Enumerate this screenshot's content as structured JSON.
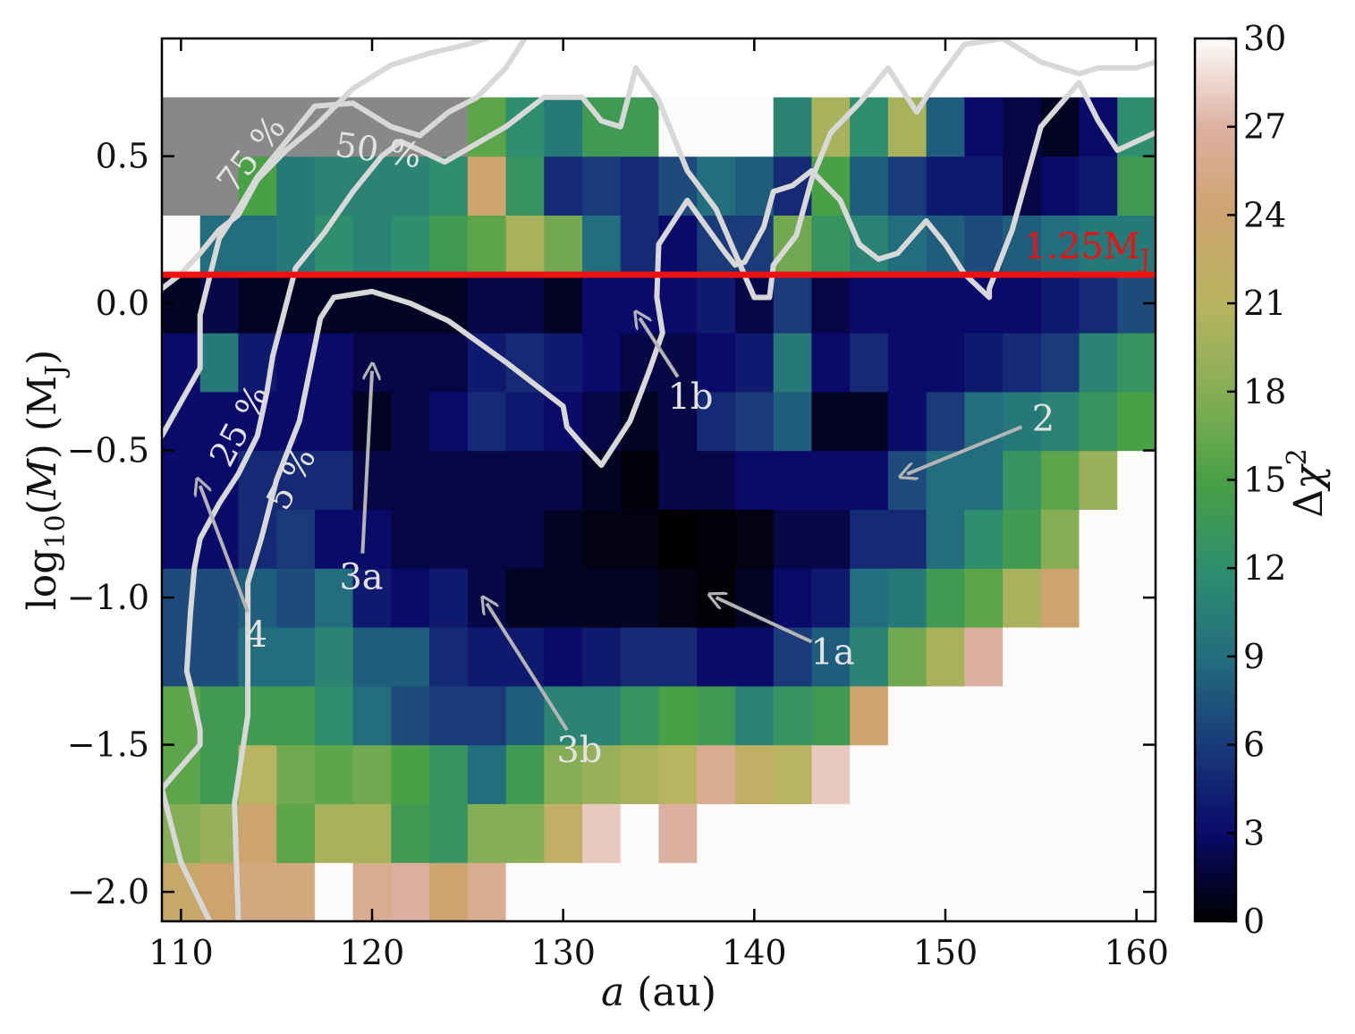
{
  "chart_data": {
    "type": "heatmap",
    "xlabel": "a (au)",
    "ylabel": "log10(M) (MJ)",
    "colorbar_label": "Δχ²",
    "xlim": [
      109.0,
      161.0
    ],
    "ylim": [
      -2.1,
      0.9
    ],
    "x_ticks": [
      110,
      120,
      130,
      140,
      150,
      160
    ],
    "y_ticks": [
      -2.0,
      -1.5,
      -1.0,
      -0.5,
      0.0,
      0.5
    ],
    "y_tick_labels": [
      "−2.0",
      "−1.5",
      "−1.0",
      "−0.5",
      "0.0",
      "0.5"
    ],
    "colorbar_range": [
      0,
      30
    ],
    "colorbar_ticks": [
      0,
      3,
      6,
      9,
      12,
      15,
      18,
      21,
      24,
      27,
      30
    ],
    "colormap": [
      "#000000",
      "#0a0a6a",
      "#1a3a7a",
      "#226e7e",
      "#2e8e6e",
      "#49a045",
      "#86ae55",
      "#b9b460",
      "#cda46e",
      "#dcb0a0",
      "#fdfafa"
    ],
    "excluded_color": "#888888",
    "x_edges": [
      109.0,
      111.0,
      113.0,
      115.0,
      117.0,
      119.0,
      121.0,
      123.0,
      125.0,
      127.0,
      129.0,
      131.0,
      133.0,
      135.0,
      137.0,
      139.0,
      141.0,
      143.0,
      145.0,
      147.0,
      149.0,
      151.0,
      153.0,
      155.0,
      157.0,
      159.0,
      161.0
    ],
    "y_edges": [
      -2.1,
      -1.9,
      -1.7,
      -1.5,
      -1.3,
      -1.1,
      -0.9,
      -0.7,
      -0.5,
      -0.3,
      -0.1,
      0.1,
      0.3,
      0.5,
      0.7,
      0.9
    ],
    "z_rows_bottom_to_top": [
      [
        23,
        24,
        25,
        25,
        30,
        26,
        27,
        24,
        26,
        30,
        30,
        30,
        30,
        30,
        30,
        30,
        30,
        30,
        30,
        30,
        30,
        30,
        30,
        30,
        30,
        30
      ],
      [
        18,
        19,
        24,
        16,
        20,
        20,
        14,
        13,
        18,
        18,
        22,
        28,
        30,
        27,
        30,
        30,
        30,
        30,
        30,
        30,
        30,
        30,
        30,
        30,
        30,
        30
      ],
      [
        16,
        14,
        21,
        17,
        16,
        17,
        15,
        13,
        9,
        14,
        18,
        19,
        20,
        21,
        26,
        22,
        21,
        28,
        30,
        30,
        30,
        30,
        30,
        30,
        30,
        30
      ],
      [
        16,
        14,
        14,
        14,
        12,
        9,
        7,
        6,
        6,
        8,
        11,
        11,
        13,
        15,
        14,
        11,
        13,
        14,
        24,
        30,
        30,
        30,
        30,
        30,
        30,
        30
      ],
      [
        7,
        7,
        9,
        9,
        11,
        8,
        8,
        5,
        4,
        4,
        3,
        4,
        5,
        5,
        3,
        3,
        6,
        8,
        11,
        17,
        20,
        27,
        30,
        30,
        30,
        30
      ],
      [
        7,
        7,
        8,
        7,
        9,
        4,
        3,
        4,
        2,
        1,
        1,
        1,
        1,
        0.5,
        0.2,
        1,
        3,
        4,
        9,
        10,
        14,
        16,
        20,
        24,
        30,
        30
      ],
      [
        3,
        3,
        5,
        6,
        3,
        3,
        2,
        2,
        2,
        2,
        1,
        0.5,
        0.5,
        0,
        0.3,
        0.5,
        2,
        2,
        5,
        5,
        9,
        12,
        14,
        18,
        30,
        30
      ],
      [
        3,
        3,
        5,
        5,
        5,
        2,
        2,
        2,
        2,
        2,
        2,
        1,
        0.3,
        2,
        2,
        3,
        3,
        3,
        3,
        7,
        9,
        9,
        13,
        16,
        19,
        30
      ],
      [
        3,
        3,
        3,
        3,
        3,
        1,
        2,
        3,
        5,
        4,
        3,
        2,
        1,
        2,
        5,
        6,
        8,
        1,
        1,
        3,
        6,
        9,
        10,
        11,
        13,
        15
      ],
      [
        3,
        10,
        4,
        3,
        3,
        2,
        2,
        2,
        4,
        5,
        4,
        3,
        2,
        2,
        3,
        4,
        10,
        3,
        5,
        3,
        3,
        4,
        5,
        6,
        11,
        13
      ],
      [
        1,
        2,
        1,
        1,
        1,
        1,
        1,
        1,
        2,
        2,
        1,
        3,
        3,
        3,
        4,
        2,
        6,
        2,
        3,
        3,
        3,
        3,
        3,
        4,
        5,
        7
      ],
      [
        30,
        9,
        9,
        10,
        12,
        11,
        12,
        14,
        16,
        20,
        17,
        9,
        5,
        3,
        6,
        6,
        17,
        13,
        11,
        9,
        8,
        7,
        8,
        9,
        10,
        10
      ],
      [
        30,
        30,
        15,
        10,
        11,
        11,
        11,
        12,
        24,
        13,
        5,
        6,
        5,
        7,
        9,
        8,
        5,
        15,
        8,
        6,
        4,
        4,
        2,
        3,
        4,
        14
      ],
      [
        30,
        30,
        30,
        30,
        30,
        30,
        30,
        30,
        16,
        12,
        10,
        14,
        14,
        30,
        30,
        30,
        11,
        20,
        12,
        20,
        8,
        3,
        2,
        1,
        3,
        12
      ]
    ],
    "excluded_cells_note": "",
    "reference_line": {
      "y": 0.097,
      "label": "1.25MJ",
      "color": "#ee1111"
    },
    "contours": [
      {
        "label": "5 %",
        "points": [
          [
            113.0,
            -2.1
          ],
          [
            112.9,
            -1.9
          ],
          [
            112.8,
            -1.7
          ],
          [
            113.5,
            -1.4
          ],
          [
            113.5,
            -1.1
          ],
          [
            113.5,
            -0.95
          ],
          [
            114.2,
            -0.8
          ],
          [
            115.0,
            -0.6
          ],
          [
            116.2,
            -0.4
          ],
          [
            117.3,
            -0.05
          ],
          [
            118.0,
            0.02
          ],
          [
            120.0,
            0.04
          ],
          [
            122.0,
            0.0
          ],
          [
            124.0,
            -0.06
          ],
          [
            127.0,
            -0.2
          ],
          [
            129.0,
            -0.3
          ],
          [
            130.0,
            -0.35
          ],
          [
            130.2,
            -0.42
          ],
          [
            131.0,
            -0.48
          ],
          [
            132.0,
            -0.55
          ],
          [
            133.5,
            -0.4
          ],
          [
            134.5,
            -0.23
          ],
          [
            135.2,
            -0.1
          ],
          [
            134.9,
            0.02
          ],
          [
            135.0,
            0.2
          ],
          [
            136.5,
            0.35
          ],
          [
            137.5,
            0.26
          ],
          [
            138.5,
            0.17
          ],
          [
            139.0,
            0.13
          ],
          [
            139.5,
            0.14
          ],
          [
            140.5,
            0.26
          ],
          [
            141.0,
            0.38
          ],
          [
            142.0,
            0.4
          ],
          [
            143.0,
            0.45
          ],
          [
            144.5,
            0.35
          ],
          [
            145.5,
            0.2
          ],
          [
            146.5,
            0.15
          ],
          [
            147.5,
            0.17
          ],
          [
            149.0,
            0.28
          ],
          [
            150.0,
            0.2
          ],
          [
            151.0,
            0.1
          ],
          [
            152.3,
            0.02
          ],
          [
            152.3,
            0.05
          ],
          [
            153.5,
            0.25
          ],
          [
            155.0,
            0.6
          ],
          [
            157.0,
            0.75
          ],
          [
            158.0,
            0.62
          ],
          [
            159.0,
            0.52
          ],
          [
            161.0,
            0.58
          ]
        ]
      },
      {
        "label": "25 %",
        "points": [
          [
            111.5,
            -2.1
          ],
          [
            110.0,
            -1.9
          ],
          [
            109.0,
            -1.65
          ],
          [
            111.0,
            -1.5
          ],
          [
            111.0,
            -1.45
          ],
          [
            110.5,
            -1.3
          ],
          [
            110.3,
            -1.25
          ],
          [
            110.5,
            -1.05
          ],
          [
            110.7,
            -0.9
          ],
          [
            111.0,
            -0.8
          ],
          [
            112.0,
            -0.68
          ],
          [
            113.0,
            -0.58
          ],
          [
            114.0,
            -0.45
          ],
          [
            114.5,
            -0.3
          ],
          [
            114.8,
            -0.18
          ],
          [
            116.0,
            0.12
          ],
          [
            117.5,
            0.24
          ],
          [
            119.0,
            0.38
          ],
          [
            120.5,
            0.5
          ],
          [
            121.5,
            0.55
          ],
          [
            122.5,
            0.52
          ],
          [
            123.8,
            0.48
          ],
          [
            127.0,
            0.6
          ],
          [
            129.0,
            0.7
          ],
          [
            131.0,
            0.7
          ],
          [
            132.0,
            0.62
          ],
          [
            133.0,
            0.6
          ],
          [
            133.8,
            0.8
          ],
          [
            135.0,
            0.69
          ],
          [
            136.5,
            0.45
          ],
          [
            138.0,
            0.32
          ],
          [
            140.0,
            0.02
          ],
          [
            140.8,
            0.02
          ],
          [
            141.0,
            0.13
          ],
          [
            142.2,
            0.23
          ],
          [
            143.0,
            0.42
          ],
          [
            144.0,
            0.58
          ],
          [
            145.5,
            0.68
          ],
          [
            147.0,
            0.8
          ],
          [
            148.5,
            0.65
          ],
          [
            149.5,
            0.75
          ],
          [
            151.0,
            0.88
          ],
          [
            153.0,
            0.9
          ],
          [
            155.0,
            0.82
          ],
          [
            157.0,
            0.78
          ],
          [
            158.0,
            0.8
          ],
          [
            160.0,
            0.8
          ],
          [
            161.0,
            0.82
          ]
        ]
      },
      {
        "label": "50 %",
        "points": [
          [
            109.0,
            -0.45
          ],
          [
            111.0,
            -0.22
          ],
          [
            111.0,
            -0.04
          ],
          [
            112.0,
            0.22
          ],
          [
            113.0,
            0.32
          ],
          [
            114.0,
            0.43
          ],
          [
            115.5,
            0.55
          ],
          [
            117.0,
            0.67
          ],
          [
            119.0,
            0.68
          ],
          [
            121.0,
            0.6
          ],
          [
            122.5,
            0.57
          ],
          [
            124.0,
            0.65
          ],
          [
            125.5,
            0.7
          ],
          [
            127.0,
            0.8
          ],
          [
            128.0,
            0.9
          ]
        ]
      },
      {
        "label": "75 %",
        "points": [
          [
            109.0,
            0.05
          ],
          [
            110.0,
            0.1
          ],
          [
            111.0,
            0.17
          ],
          [
            112.0,
            0.25
          ],
          [
            113.0,
            0.3
          ],
          [
            114.0,
            0.42
          ],
          [
            115.5,
            0.52
          ],
          [
            117.0,
            0.6
          ],
          [
            119.0,
            0.73
          ],
          [
            121.0,
            0.81
          ],
          [
            123.0,
            0.85
          ],
          [
            125.0,
            0.88
          ],
          [
            126.0,
            0.9
          ]
        ]
      }
    ],
    "annotations": [
      {
        "text": "1a",
        "from": [
          143.0,
          -1.15
        ],
        "to": [
          138.0,
          -1.0
        ]
      },
      {
        "text": "1b",
        "from": [
          136.0,
          -0.25
        ],
        "to": [
          134.0,
          -0.05
        ]
      },
      {
        "text": "2",
        "from": [
          154.0,
          -0.42
        ],
        "to": [
          148.0,
          -0.58
        ]
      },
      {
        "text": "3a",
        "from": [
          119.5,
          -0.85
        ],
        "to": [
          120.0,
          -0.23
        ]
      },
      {
        "text": "3b",
        "from": [
          130.2,
          -1.45
        ],
        "to": [
          126.0,
          -1.02
        ]
      },
      {
        "text": "4",
        "from": [
          113.5,
          -1.05
        ],
        "to": [
          111.0,
          -0.62
        ]
      }
    ]
  }
}
